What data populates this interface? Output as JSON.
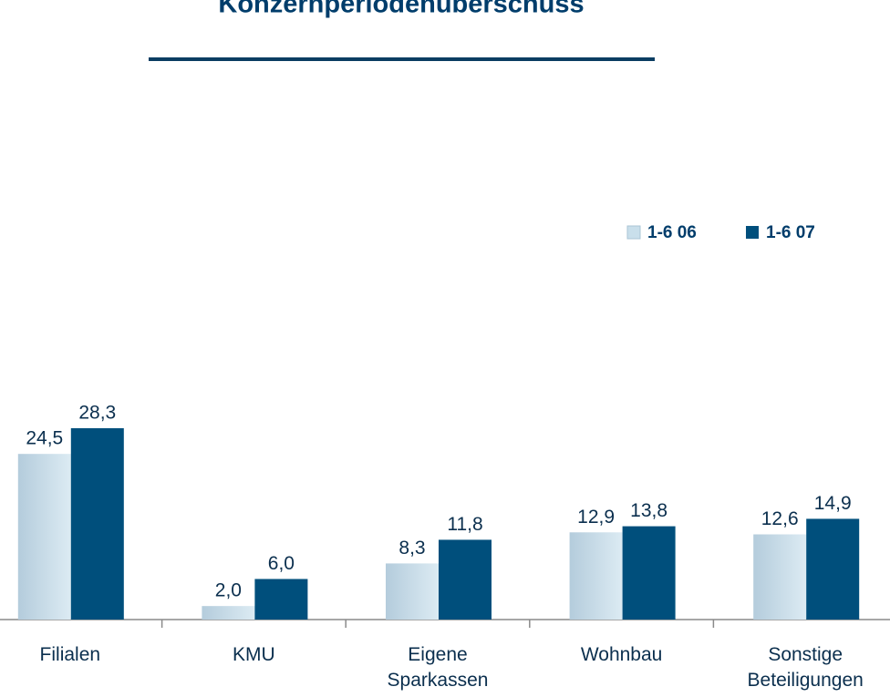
{
  "chart_data": {
    "type": "bar",
    "title": "Konzernperiodenüberschuss",
    "categories": [
      "Filialen",
      "KMU",
      "Eigene Sparkassen",
      "Wohnbau",
      "Sonstige Beteiligungen"
    ],
    "series": [
      {
        "name": "1-6 06",
        "color": "#c9dfeb",
        "values": [
          24.5,
          2.0,
          8.3,
          12.9,
          12.6
        ],
        "value_labels": [
          "24,5",
          "2,0",
          "8,3",
          "12,9",
          "12,6"
        ]
      },
      {
        "name": "1-6 07",
        "color": "#004f7c",
        "values": [
          28.3,
          6.0,
          11.8,
          13.8,
          14.9
        ],
        "value_labels": [
          "28,3",
          "6,0",
          "11,8",
          "13,8",
          "14,9"
        ]
      }
    ]
  }
}
